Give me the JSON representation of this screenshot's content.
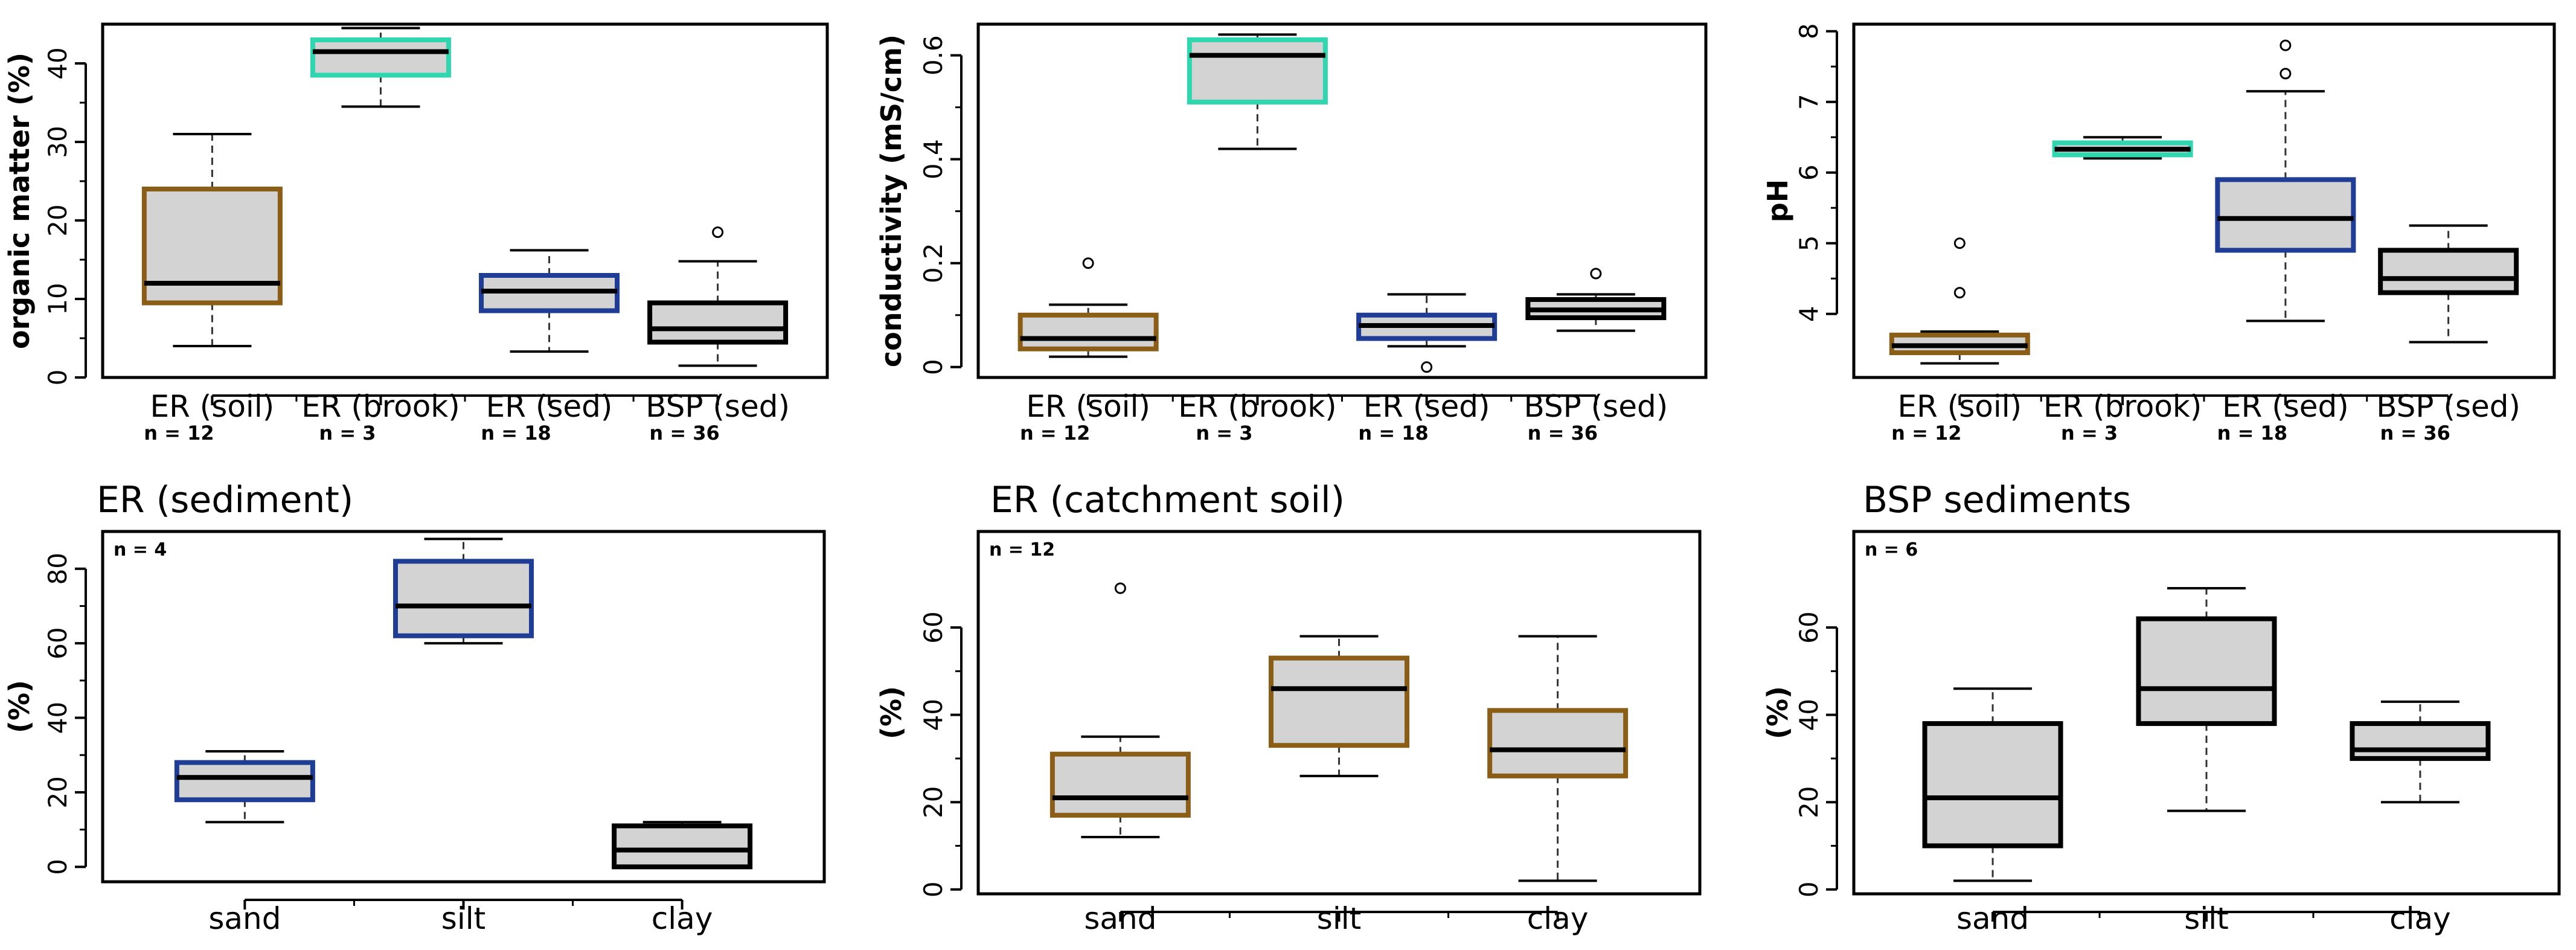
{
  "chart_data": [
    {
      "type": "box",
      "ylabel": "organic matter (%)",
      "ylim": [
        0,
        45
      ],
      "yticks": [
        0,
        10,
        20,
        30,
        40
      ],
      "categories": [
        "ER (soil)",
        "ER (brook)",
        "ER (sed)",
        "BSP (sed)"
      ],
      "n_labels": [
        "n = 12",
        "n = 3",
        "n = 18",
        "n = 36"
      ],
      "colors": [
        "#8a5e16",
        "#2fd6b0",
        "#1f3d94",
        "#000000"
      ],
      "boxes": [
        {
          "min": 4,
          "q1": 9.5,
          "median": 12,
          "q3": 24,
          "max": 31,
          "outliers": []
        },
        {
          "min": 34.5,
          "q1": 38.5,
          "median": 41.5,
          "q3": 43,
          "max": 44.5,
          "outliers": []
        },
        {
          "min": 3.3,
          "q1": 8.5,
          "median": 11,
          "q3": 13,
          "max": 16.2,
          "outliers": []
        },
        {
          "min": 1.5,
          "q1": 4.5,
          "median": 6.2,
          "q3": 9.5,
          "max": 14.8,
          "outliers": [
            18.5
          ]
        }
      ]
    },
    {
      "type": "box",
      "ylabel": "conductivity (mS/cm)",
      "ylim": [
        -0.02,
        0.66
      ],
      "yticks": [
        0,
        0.2,
        0.4,
        0.6
      ],
      "categories": [
        "ER (soil)",
        "ER (brook)",
        "ER (sed)",
        "BSP (sed)"
      ],
      "n_labels": [
        "n = 12",
        "n = 3",
        "n = 18",
        "n = 36"
      ],
      "colors": [
        "#8a5e16",
        "#2fd6b0",
        "#1f3d94",
        "#000000"
      ],
      "boxes": [
        {
          "min": 0.02,
          "q1": 0.035,
          "median": 0.055,
          "q3": 0.1,
          "max": 0.12,
          "outliers": [
            0.2
          ]
        },
        {
          "min": 0.42,
          "q1": 0.51,
          "median": 0.6,
          "q3": 0.63,
          "max": 0.64,
          "outliers": []
        },
        {
          "min": 0.04,
          "q1": 0.055,
          "median": 0.08,
          "q3": 0.1,
          "max": 0.14,
          "outliers": [
            0.0
          ]
        },
        {
          "min": 0.07,
          "q1": 0.095,
          "median": 0.11,
          "q3": 0.13,
          "max": 0.14,
          "outliers": [
            0.18
          ]
        }
      ]
    },
    {
      "type": "box",
      "ylabel": "pH",
      "ylim": [
        3.1,
        8.1
      ],
      "yticks": [
        4,
        5,
        6,
        7,
        8
      ],
      "categories": [
        "ER (soil)",
        "ER (brook)",
        "ER (sed)",
        "BSP (sed)"
      ],
      "n_labels": [
        "n = 12",
        "n = 3",
        "n = 18",
        "n = 36"
      ],
      "colors": [
        "#8a5e16",
        "#2fd6b0",
        "#1f3d94",
        "#000000"
      ],
      "boxes": [
        {
          "min": 3.3,
          "q1": 3.45,
          "median": 3.55,
          "q3": 3.7,
          "max": 3.75,
          "outliers": [
            4.3,
            5.0
          ]
        },
        {
          "min": 6.2,
          "q1": 6.25,
          "median": 6.33,
          "q3": 6.42,
          "max": 6.5,
          "outliers": []
        },
        {
          "min": 3.9,
          "q1": 4.9,
          "median": 5.35,
          "q3": 5.9,
          "max": 7.15,
          "outliers": [
            7.4,
            7.8
          ]
        },
        {
          "min": 3.6,
          "q1": 4.3,
          "median": 4.5,
          "q3": 4.9,
          "max": 5.25,
          "outliers": []
        }
      ]
    },
    {
      "type": "box",
      "title": "ER (sediment)",
      "n_label": "n = 4",
      "ylabel": "(%)",
      "ylim": [
        -4,
        90
      ],
      "yticks": [
        0,
        20,
        40,
        60,
        80
      ],
      "categories": [
        "sand",
        "silt",
        "clay"
      ],
      "colors": [
        "#1f3d94",
        "#1f3d94",
        "#000000"
      ],
      "boxes": [
        {
          "min": 12,
          "q1": 18,
          "median": 24,
          "q3": 28,
          "max": 31,
          "outliers": []
        },
        {
          "min": 60,
          "q1": 62,
          "median": 70,
          "q3": 82,
          "max": 88,
          "outliers": []
        },
        {
          "min": 0,
          "q1": 0,
          "median": 4.5,
          "q3": 11,
          "max": 12,
          "outliers": []
        }
      ]
    },
    {
      "type": "box",
      "title": "ER (catchment soil)",
      "n_label": "n = 12",
      "ylabel": "(%)",
      "ylim": [
        -1,
        82
      ],
      "yticks": [
        0,
        20,
        40,
        60
      ],
      "categories": [
        "sand",
        "silt",
        "clay"
      ],
      "colors": [
        "#8a5e16",
        "#8a5e16",
        "#8a5e16"
      ],
      "boxes": [
        {
          "min": 12,
          "q1": 17,
          "median": 21,
          "q3": 31,
          "max": 35,
          "outliers": [
            69
          ]
        },
        {
          "min": 26,
          "q1": 33,
          "median": 46,
          "q3": 53,
          "max": 58,
          "outliers": []
        },
        {
          "min": 2,
          "q1": 26,
          "median": 32,
          "q3": 41,
          "max": 58,
          "outliers": []
        }
      ]
    },
    {
      "type": "box",
      "title": "BSP sediments",
      "n_label": "n = 6",
      "ylabel": "(%)",
      "ylim": [
        -1,
        82
      ],
      "yticks": [
        0,
        20,
        40,
        60
      ],
      "categories": [
        "sand",
        "silt",
        "clay"
      ],
      "colors": [
        "#000000",
        "#000000",
        "#000000"
      ],
      "boxes": [
        {
          "min": 2,
          "q1": 10,
          "median": 21,
          "q3": 38,
          "max": 46,
          "outliers": []
        },
        {
          "min": 18,
          "q1": 38,
          "median": 46,
          "q3": 62,
          "max": 69,
          "outliers": []
        },
        {
          "min": 20,
          "q1": 30,
          "median": 32,
          "q3": 38,
          "max": 43,
          "outliers": []
        }
      ]
    }
  ]
}
